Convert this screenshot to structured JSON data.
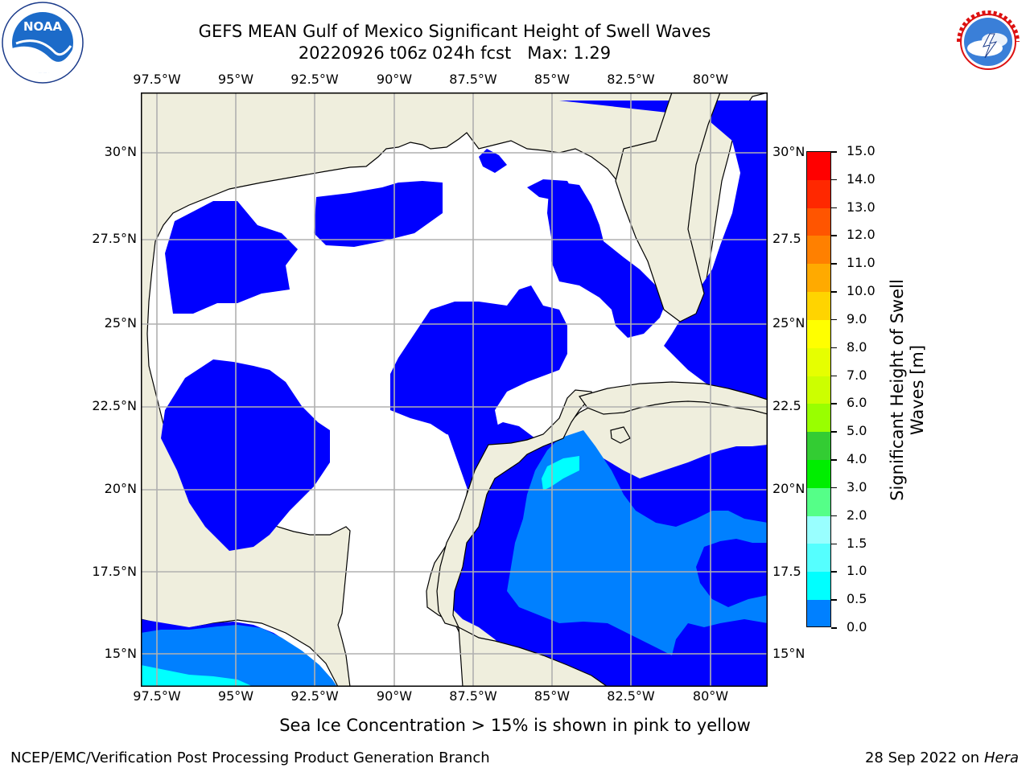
{
  "header": {
    "title_line1": "GEFS MEAN Gulf of Mexico Significant Height of Swell Waves",
    "title_line2": "20220926 t06z 024h fcst   Max: 1.29"
  },
  "logos": {
    "noaa_text": "NOAA",
    "noaa_ring_text": "NATIONAL OCEANIC AND ATMOSPHERIC ADMINISTRATION · U.S. DEPARTMENT OF COMMERCE",
    "nws_ring_text": "NATIONAL WEATHER SERVICE"
  },
  "map": {
    "lon_ticks": [
      "97.5°W",
      "95°W",
      "92.5°W",
      "90°W",
      "87.5°W",
      "85°W",
      "82.5°W",
      "80°W"
    ],
    "lat_ticks_left": [
      "30°N",
      "27.5°N",
      "25°N",
      "22.5°N",
      "20°N",
      "17.5°N",
      "15°N"
    ],
    "lat_ticks_right": [
      "30°N",
      "27.5",
      "25°N",
      "22.5",
      "20°N",
      "17.5",
      "15°N"
    ],
    "lon_range": [
      -98,
      -78.2
    ],
    "lat_range": [
      14,
      32
    ],
    "colors": {
      "land": "#efeedd",
      "water_low": "#0000ff",
      "water_mid": "#0080ff",
      "water_high": "#00ffff",
      "grid": "#b0b0b0"
    }
  },
  "colorbar": {
    "label": "Significant Height of Swell Waves [m]",
    "tick_labels": [
      "15.0",
      "14.0",
      "13.0",
      "12.0",
      "11.0",
      "10.0",
      "9.0",
      "8.0",
      "7.0",
      "6.0",
      "5.0",
      "4.0",
      "3.0",
      "2.0",
      "1.5",
      "1.0",
      "0.5",
      "0.0"
    ],
    "band_colors": [
      "#ff0000",
      "#ff2800",
      "#ff5500",
      "#ff8000",
      "#ffaa00",
      "#ffd400",
      "#ffff00",
      "#e6ff00",
      "#ccff00",
      "#99ff00",
      "#33cc33",
      "#00ee00",
      "#55ff88",
      "#99ffff",
      "#55ffff",
      "#00ffff",
      "#0080ff",
      "#0000ff"
    ]
  },
  "footer": {
    "note": "Sea Ice Concentration > 15% is shown in pink to yellow",
    "credit": "NCEP/EMC/Verification Post Processing Product Generation Branch",
    "date_text": "28 Sep 2022 on",
    "machine": "Hera"
  }
}
